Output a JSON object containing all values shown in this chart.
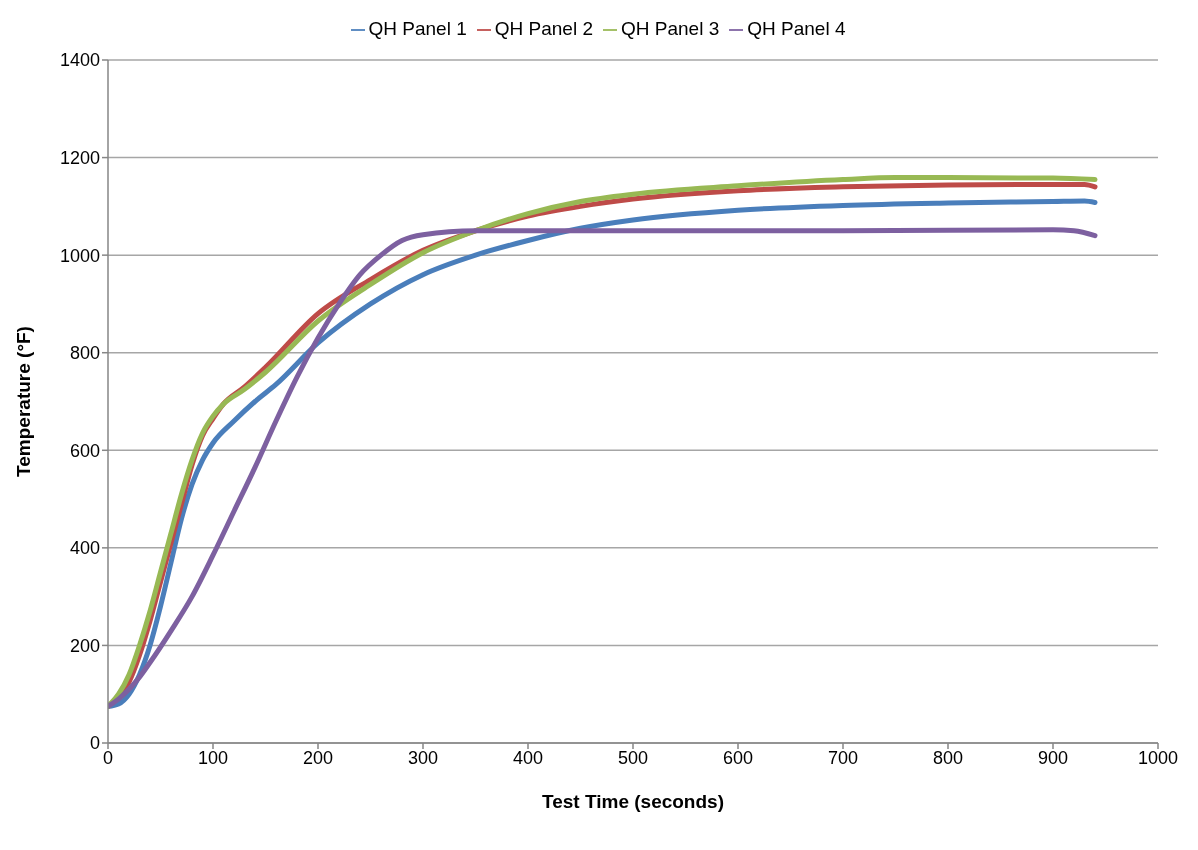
{
  "chart_data": {
    "type": "line",
    "xlabel": "Test Time (seconds)",
    "ylabel": "Temperature (°F)",
    "xlim": [
      0,
      1000
    ],
    "xticks": [
      0,
      100,
      200,
      300,
      400,
      500,
      600,
      700,
      800,
      900,
      1000
    ],
    "ylim": [
      0,
      1400
    ],
    "yticks": [
      0,
      200,
      400,
      600,
      800,
      1000,
      1200,
      1400
    ],
    "grid": "y",
    "legend": "top",
    "marker": "none",
    "line_style": "solid",
    "series": [
      {
        "name": "QH Panel 1",
        "color": "#4a7ebb",
        "x": [
          0,
          10,
          20,
          30,
          40,
          50,
          60,
          70,
          80,
          90,
          100,
          120,
          140,
          160,
          200,
          250,
          300,
          350,
          400,
          450,
          500,
          600,
          700,
          800,
          900,
          930,
          940
        ],
        "values": [
          75,
          80,
          100,
          140,
          200,
          280,
          370,
          460,
          530,
          580,
          615,
          660,
          700,
          735,
          820,
          900,
          960,
          1000,
          1030,
          1055,
          1072,
          1092,
          1102,
          1107,
          1110,
          1111,
          1108
        ]
      },
      {
        "name": "QH Panel 2",
        "color": "#be4b48",
        "x": [
          0,
          10,
          20,
          30,
          40,
          50,
          60,
          70,
          80,
          90,
          100,
          110,
          130,
          150,
          200,
          250,
          300,
          350,
          400,
          450,
          500,
          600,
          700,
          800,
          900,
          930,
          940
        ],
        "values": [
          75,
          95,
          125,
          180,
          250,
          330,
          410,
          490,
          570,
          630,
          665,
          695,
          730,
          770,
          880,
          950,
          1010,
          1050,
          1080,
          1100,
          1115,
          1132,
          1140,
          1144,
          1145,
          1145,
          1140
        ]
      },
      {
        "name": "QH Panel 3",
        "color": "#98b954",
        "x": [
          0,
          10,
          20,
          30,
          40,
          50,
          60,
          70,
          80,
          90,
          100,
          110,
          130,
          150,
          200,
          250,
          300,
          350,
          400,
          450,
          500,
          600,
          700,
          750,
          800,
          900,
          940
        ],
        "values": [
          75,
          100,
          140,
          200,
          270,
          350,
          430,
          510,
          580,
          635,
          670,
          695,
          725,
          760,
          865,
          940,
          1005,
          1050,
          1085,
          1110,
          1125,
          1142,
          1155,
          1159,
          1159,
          1158,
          1155
        ]
      },
      {
        "name": "QH Panel 4",
        "color": "#7d60a0",
        "x": [
          0,
          10,
          20,
          30,
          40,
          60,
          80,
          100,
          120,
          140,
          160,
          180,
          200,
          220,
          240,
          260,
          280,
          300,
          350,
          400,
          500,
          700,
          900,
          920,
          940
        ],
        "values": [
          75,
          90,
          110,
          135,
          165,
          230,
          300,
          385,
          475,
          565,
          660,
          750,
          830,
          900,
          960,
          1000,
          1030,
          1042,
          1050,
          1050,
          1050,
          1050,
          1052,
          1050,
          1040
        ]
      }
    ]
  }
}
